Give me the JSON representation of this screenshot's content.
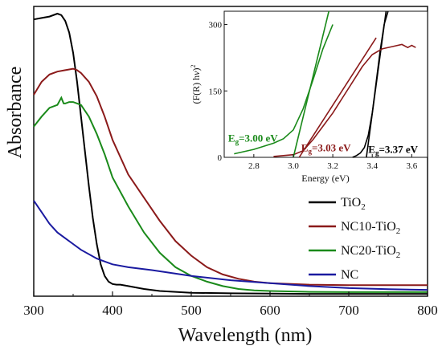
{
  "chart_data": [
    {
      "type": "line",
      "xlabel": "Wavelength (nm)",
      "ylabel": "Absorbance",
      "xlim": [
        300,
        800
      ],
      "ylim": [
        0,
        1
      ],
      "xticks": [
        "300",
        "400",
        "500",
        "600",
        "700",
        "800"
      ],
      "legend_position": "bottom-right",
      "series": [
        {
          "name": "TiO2",
          "label_main": "TiO",
          "label_sub": "2",
          "label_rest": "",
          "color": "#000000",
          "x": [
            300,
            310,
            320,
            330,
            335,
            340,
            345,
            350,
            355,
            360,
            365,
            370,
            375,
            380,
            385,
            390,
            395,
            400,
            405,
            410,
            420,
            440,
            460,
            500,
            550,
            600,
            650,
            700,
            750,
            800
          ],
          "y": [
            0.955,
            0.96,
            0.965,
            0.975,
            0.97,
            0.95,
            0.91,
            0.84,
            0.74,
            0.62,
            0.5,
            0.38,
            0.27,
            0.18,
            0.11,
            0.07,
            0.05,
            0.042,
            0.04,
            0.04,
            0.035,
            0.025,
            0.018,
            0.012,
            0.01,
            0.009,
            0.008,
            0.008,
            0.008,
            0.008
          ]
        },
        {
          "name": "NC10-TiO2",
          "label_main": "NC10-TiO",
          "label_sub": "2",
          "label_rest": "",
          "color": "#8b1a1a",
          "x": [
            300,
            310,
            320,
            330,
            340,
            350,
            355,
            360,
            370,
            380,
            390,
            400,
            420,
            440,
            460,
            480,
            500,
            520,
            540,
            560,
            580,
            600,
            650,
            700,
            750,
            800
          ],
          "y": [
            0.695,
            0.74,
            0.765,
            0.775,
            0.78,
            0.785,
            0.78,
            0.77,
            0.74,
            0.69,
            0.62,
            0.54,
            0.42,
            0.34,
            0.26,
            0.19,
            0.14,
            0.1,
            0.075,
            0.06,
            0.05,
            0.045,
            0.04,
            0.038,
            0.038,
            0.038
          ]
        },
        {
          "name": "NC20-TiO2",
          "label_main": "NC20-TiO",
          "label_sub": "2",
          "label_rest": "",
          "color": "#1a8a1a",
          "x": [
            300,
            310,
            320,
            330,
            335,
            338,
            340,
            345,
            350,
            360,
            370,
            380,
            390,
            400,
            420,
            440,
            460,
            480,
            500,
            520,
            540,
            560,
            580,
            600,
            650,
            700,
            750,
            800
          ],
          "y": [
            0.585,
            0.62,
            0.65,
            0.66,
            0.685,
            0.665,
            0.665,
            0.67,
            0.67,
            0.66,
            0.62,
            0.56,
            0.49,
            0.41,
            0.31,
            0.22,
            0.15,
            0.1,
            0.07,
            0.05,
            0.035,
            0.025,
            0.02,
            0.018,
            0.015,
            0.014,
            0.014,
            0.014
          ]
        },
        {
          "name": "NC",
          "label_main": "NC",
          "label_sub": "",
          "label_rest": "",
          "color": "#1a1aa0",
          "x": [
            300,
            310,
            320,
            330,
            340,
            350,
            360,
            380,
            400,
            420,
            450,
            500,
            550,
            600,
            650,
            700,
            750,
            800
          ],
          "y": [
            0.33,
            0.29,
            0.25,
            0.22,
            0.2,
            0.18,
            0.16,
            0.13,
            0.11,
            0.1,
            0.09,
            0.07,
            0.055,
            0.045,
            0.035,
            0.028,
            0.024,
            0.022
          ]
        }
      ]
    },
    {
      "type": "line",
      "xlabel": "Energy (eV)",
      "ylabel_parts": [
        "(F(R) h",
        "ν",
        ")",
        "2"
      ],
      "xlim": [
        2.65,
        3.68
      ],
      "ylim": [
        0,
        330
      ],
      "xticks": [
        "2.8",
        "3.0",
        "3.2",
        "3.4",
        "3.6"
      ],
      "yticks": [
        "0",
        "150",
        "300"
      ],
      "annotations": [
        {
          "text_main": "E",
          "text_sub": "g",
          "text_rest": "=3.00 eV",
          "color": "#1a8a1a",
          "x": 2.67,
          "y": 35
        },
        {
          "text_main": "E",
          "text_sub": "g",
          "text_rest": "=3.03 eV",
          "color": "#8b1a1a",
          "x": 3.04,
          "y": 14
        },
        {
          "text_main": "E",
          "text_sub": "g",
          "text_rest": "=3.37 eV",
          "color": "#000000",
          "x": 3.38,
          "y": 10
        }
      ],
      "series": [
        {
          "name": "TiO2",
          "color": "#000000",
          "x": [
            3.3,
            3.32,
            3.34,
            3.36,
            3.38,
            3.4,
            3.42,
            3.44,
            3.46,
            3.48
          ],
          "y": [
            0,
            4,
            10,
            22,
            50,
            100,
            170,
            240,
            300,
            330
          ]
        },
        {
          "name": "TiO2 fit",
          "color": "#000000",
          "x": [
            3.37,
            3.47
          ],
          "y": [
            0,
            330
          ]
        },
        {
          "name": "NC10-TiO2",
          "color": "#8b1a1a",
          "x": [
            2.9,
            3.0,
            3.05,
            3.1,
            3.15,
            3.2,
            3.25,
            3.3,
            3.35,
            3.4,
            3.45,
            3.5,
            3.55,
            3.58,
            3.6,
            3.62
          ],
          "y": [
            2,
            6,
            15,
            40,
            70,
            100,
            135,
            170,
            205,
            232,
            245,
            250,
            255,
            248,
            253,
            248
          ]
        },
        {
          "name": "NC10-TiO2 fit",
          "color": "#8b1a1a",
          "x": [
            3.03,
            3.42
          ],
          "y": [
            0,
            270
          ]
        },
        {
          "name": "NC20-TiO2",
          "color": "#1a8a1a",
          "x": [
            2.7,
            2.8,
            2.9,
            2.95,
            3.0,
            3.05,
            3.1,
            3.15,
            3.2
          ],
          "y": [
            8,
            18,
            32,
            42,
            62,
            110,
            175,
            245,
            300
          ]
        },
        {
          "name": "NC20-TiO2 fit",
          "color": "#1a8a1a",
          "x": [
            3.0,
            3.18
          ],
          "y": [
            0,
            330
          ]
        }
      ]
    }
  ]
}
